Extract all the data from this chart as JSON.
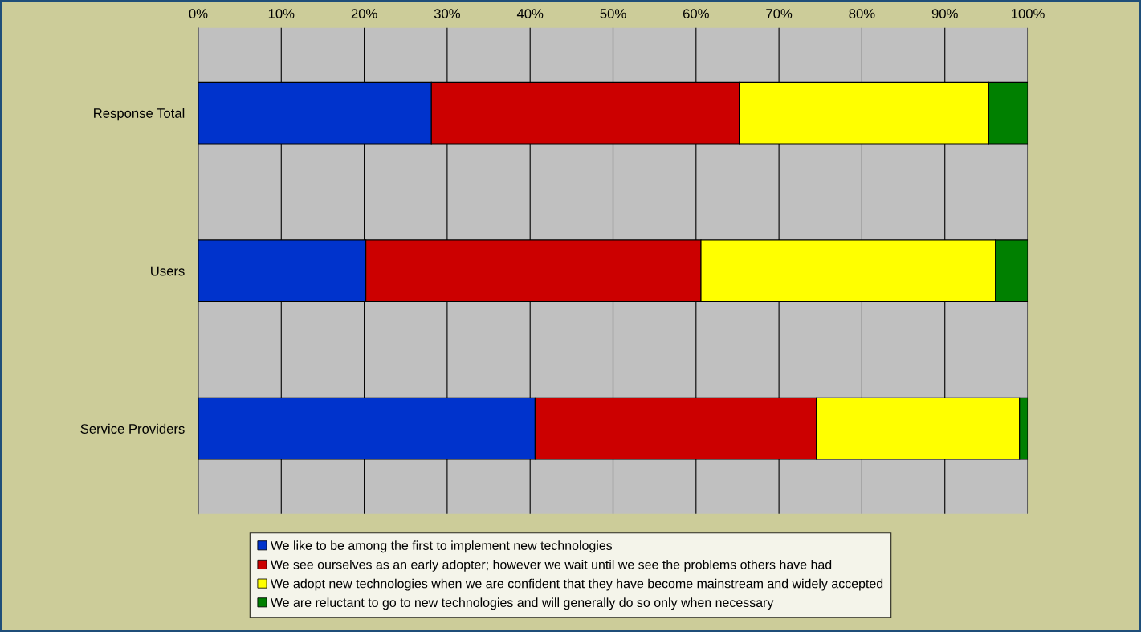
{
  "chart_data": {
    "type": "bar",
    "orientation": "horizontal",
    "stacked": true,
    "categories": [
      "Response Total",
      "Users",
      "Service Providers"
    ],
    "series": [
      {
        "name": "We like to be among the first to implement new technologies",
        "color": "#0033cc",
        "values": [
          28.1,
          20.2,
          40.6
        ]
      },
      {
        "name": "We see ourselves as an early adopter; however we wait until we see the problems others have had",
        "color": "#cc0000",
        "values": [
          37.1,
          40.4,
          33.9
        ]
      },
      {
        "name": "We adopt new technologies when we are confident that they have become mainstream and widely accepted",
        "color": "#ffff00",
        "values": [
          30.1,
          35.5,
          24.5
        ]
      },
      {
        "name": "We are reluctant to go to new technologies and will generally do so only when necessary",
        "color": "#008000",
        "values": [
          4.7,
          3.9,
          1.0
        ]
      }
    ],
    "xlim": [
      0,
      100
    ],
    "xticks": [
      {
        "value": 0,
        "label": "0%"
      },
      {
        "value": 10,
        "label": "10%"
      },
      {
        "value": 20,
        "label": "20%"
      },
      {
        "value": 30,
        "label": "30%"
      },
      {
        "value": 40,
        "label": "40%"
      },
      {
        "value": 50,
        "label": "50%"
      },
      {
        "value": 60,
        "label": "60%"
      },
      {
        "value": 70,
        "label": "70%"
      },
      {
        "value": 80,
        "label": "80%"
      },
      {
        "value": 90,
        "label": "90%"
      },
      {
        "value": 100,
        "label": "100%"
      }
    ],
    "grid": "x",
    "legend": "bottom"
  }
}
